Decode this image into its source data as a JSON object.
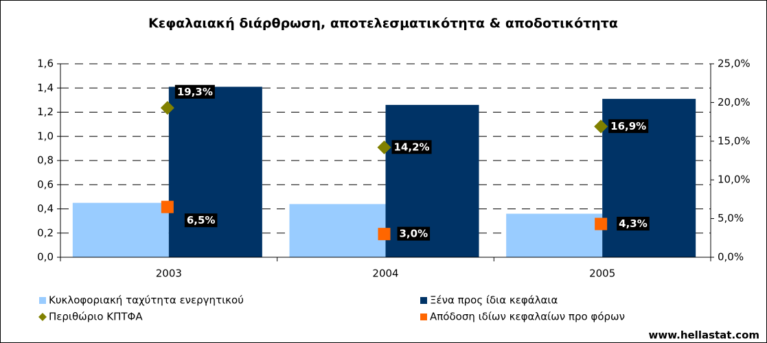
{
  "chart_data": {
    "type": "bar",
    "title": "Κεφαλαιακή διάρθρωση, αποτελεσματικότητα & αποδοτικότητα",
    "categories": [
      "2003",
      "2004",
      "2005"
    ],
    "series": [
      {
        "name": "Κυκλοφοριακή ταχύτητα ενεργητικού",
        "type": "bar",
        "color": "#99ccff",
        "values": [
          0.45,
          0.44,
          0.36
        ]
      },
      {
        "name": "Ξένα προς ίδια κεφάλαια",
        "type": "bar",
        "color": "#003366",
        "values": [
          1.41,
          1.26,
          1.31
        ]
      },
      {
        "name": "Περιθώριο ΚΠΤΦΑ",
        "type": "scatter",
        "marker": "diamond",
        "axis": "y2",
        "color": "#808000",
        "values": [
          19.3,
          14.2,
          16.9
        ],
        "value_labels": [
          "19,3%",
          "14,2%",
          "16,9%"
        ]
      },
      {
        "name": "Απόδοση ιδίων κεφαλαίων προ φόρων",
        "type": "scatter",
        "marker": "square",
        "axis": "y2",
        "color": "#ff6600",
        "values": [
          6.5,
          3.0,
          4.3
        ],
        "value_labels": [
          "6,5%",
          "3,0%",
          "4,3%"
        ]
      }
    ],
    "ylim": [
      0,
      1.6
    ],
    "yticks": [
      {
        "value": 0,
        "label": "0,0"
      },
      {
        "value": 0.2,
        "label": "0,2"
      },
      {
        "value": 0.4,
        "label": "0,4"
      },
      {
        "value": 0.6,
        "label": "0,6"
      },
      {
        "value": 0.8,
        "label": "0,8"
      },
      {
        "value": 1.0,
        "label": "1,0"
      },
      {
        "value": 1.2,
        "label": "1,2"
      },
      {
        "value": 1.4,
        "label": "1,4"
      },
      {
        "value": 1.6,
        "label": "1,6"
      }
    ],
    "y2lim": [
      0,
      25
    ],
    "y2ticks": [
      {
        "value": 0,
        "label": "0,0%"
      },
      {
        "value": 5,
        "label": "5,0%"
      },
      {
        "value": 10,
        "label": "10,0%"
      },
      {
        "value": 15,
        "label": "15,0%"
      },
      {
        "value": 20,
        "label": "20,0%"
      },
      {
        "value": 25,
        "label": "25,0%"
      }
    ],
    "grid": true,
    "legend": "bottom",
    "source": "www.hellastat.com"
  }
}
